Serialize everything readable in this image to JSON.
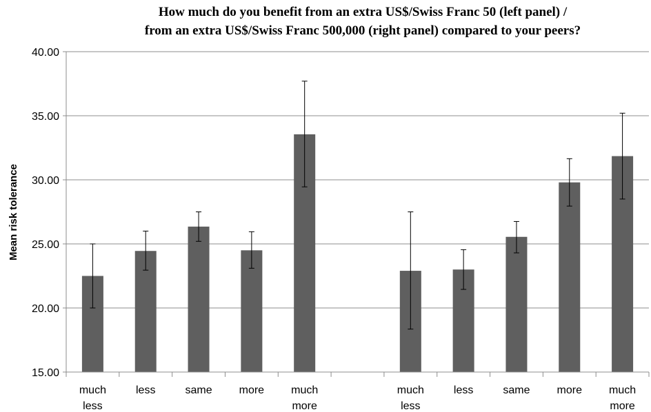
{
  "chart_data": {
    "type": "bar",
    "title": [
      "How much do you benefit from an extra US$/Swiss Franc 50 (left panel) /",
      "from an extra US$/Swiss Franc 500,000 (right panel) compared to your peers?"
    ],
    "ylabel": "Mean risk tolerance",
    "ylim": [
      15,
      40
    ],
    "yticks": [
      "15.00",
      "20.00",
      "25.00",
      "30.00",
      "35.00",
      "40.00"
    ],
    "grid": true,
    "bar_color": "#5f5f5f",
    "categories": [
      [
        "much",
        "less"
      ],
      [
        "less"
      ],
      [
        "same"
      ],
      [
        "more"
      ],
      [
        "much",
        "more"
      ],
      [
        ""
      ],
      [
        "much",
        "less"
      ],
      [
        "less"
      ],
      [
        "same"
      ],
      [
        "more"
      ],
      [
        "much",
        "more"
      ]
    ],
    "values": [
      22.5,
      24.45,
      26.35,
      24.5,
      33.55,
      null,
      22.9,
      23.0,
      25.55,
      29.8,
      31.85
    ],
    "err_low": [
      20.0,
      22.95,
      25.2,
      23.1,
      29.45,
      null,
      18.35,
      21.45,
      24.3,
      27.95,
      28.5
    ],
    "err_high": [
      25.0,
      26.0,
      27.5,
      25.95,
      37.7,
      null,
      27.5,
      24.55,
      26.75,
      31.65,
      35.2
    ]
  }
}
